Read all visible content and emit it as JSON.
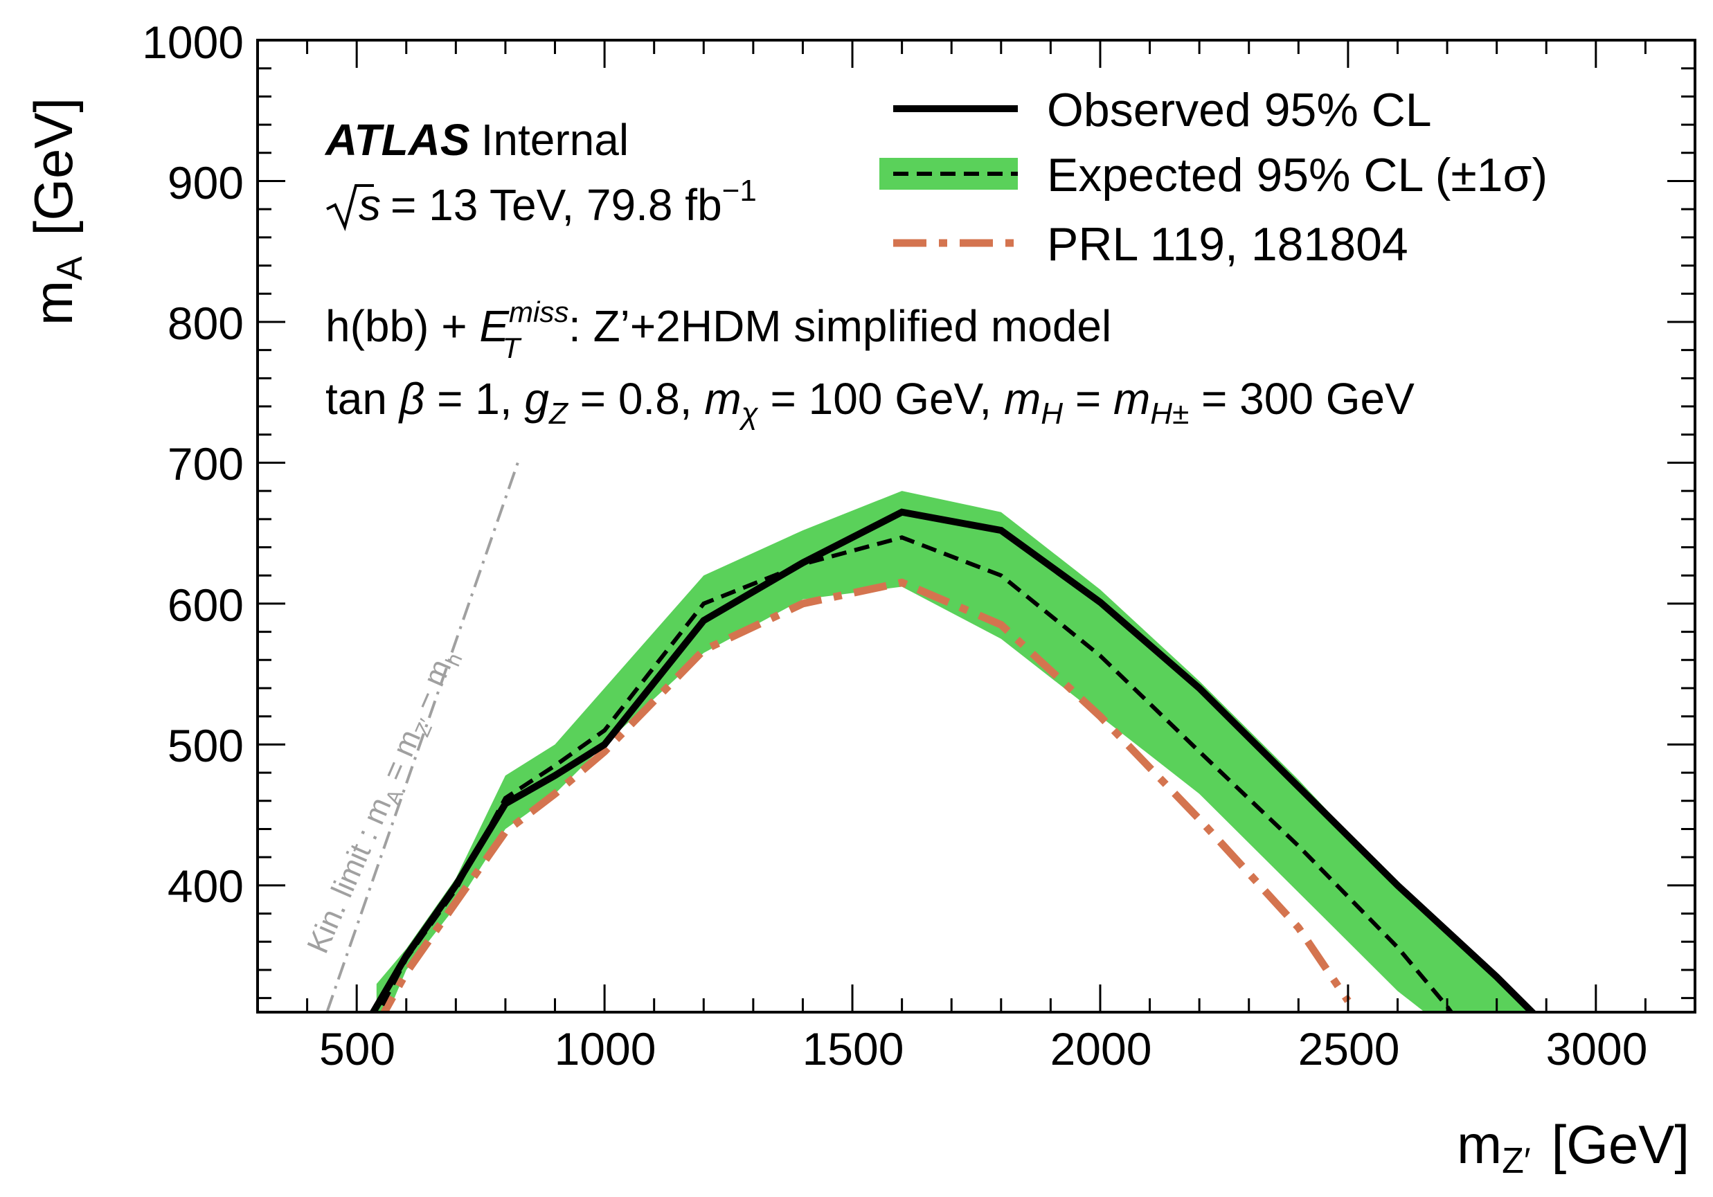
{
  "chart_data": {
    "type": "line",
    "xlabel": "m_Z′ [GeV]",
    "xlabel_parts": {
      "main": "m",
      "sub": "Z′",
      "unit": "[GeV]"
    },
    "ylabel": "m_A [GeV]",
    "ylabel_parts": {
      "main": "m",
      "sub": "A",
      "unit": "[GeV]"
    },
    "xlim": [
      300,
      3200
    ],
    "ylim": [
      310,
      1000
    ],
    "xticks": [
      500,
      1000,
      1500,
      2000,
      2500,
      3000
    ],
    "xtick_labels": [
      "500",
      "1000",
      "1500",
      "2000",
      "2500",
      "3000"
    ],
    "yticks": [
      400,
      500,
      600,
      700,
      800,
      900,
      1000
    ],
    "ytick_labels": [
      "400",
      "500",
      "600",
      "700",
      "800",
      "900",
      "1000"
    ],
    "grid": false,
    "legend_position": "top-right",
    "annotations": {
      "atlas_bold": "ATLAS",
      "atlas_rest": "Internal",
      "energy_sqrt": "√",
      "energy_s": "s",
      "energy_rest": "= 13 TeV, 79.8 fb",
      "energy_exp": "−1",
      "model_line": "h(bb) + E_T^miss: Z’+2HDM simplified model",
      "model_parts": {
        "pre": "h(bb) + ",
        "e": "E",
        "sub": "T",
        "sup": "miss",
        "post": ": Z’+2HDM simplified model"
      },
      "params_line": "tan β = 1, g_Z = 0.8, m_χ = 100 GeV, m_H = m_H± = 300 GeV",
      "params_parts": {
        "p1": "tan ",
        "beta": "β",
        "p2": " = 1, ",
        "g": "g",
        "gsub": "Z",
        "p3": " = 0.8, ",
        "m1": "m",
        "chi": "χ",
        "p4": " = 100 GeV, ",
        "m2": "m",
        "h1": "H",
        "p5": " = ",
        "m3": "m",
        "h2": "H±",
        "p6": " = 300 GeV"
      },
      "kin_limit": "Kin. limit : m_A = m_Z′ − m_h",
      "kin_parts": {
        "a": "Kin. limit : m",
        "asub": "A",
        "b": " = m",
        "bsub": "Z′",
        "c": " − m",
        "csub": "h"
      }
    },
    "series": [
      {
        "name": "Observed 95% CL",
        "style": "solid",
        "color": "#000000",
        "x": [
          500,
          600,
          700,
          800,
          900,
          1000,
          1200,
          1400,
          1600,
          1800,
          2000,
          2200,
          2400,
          2600,
          2800,
          2900
        ],
        "y": [
          290,
          350,
          400,
          458,
          478,
          500,
          588,
          629,
          665,
          652,
          601,
          540,
          470,
          400,
          335,
          300
        ]
      },
      {
        "name": "Expected 95% CL (±1σ)",
        "style": "dashed",
        "color": "#000000",
        "x": [
          530,
          600,
          700,
          800,
          900,
          1000,
          1200,
          1400,
          1600,
          1800,
          2000,
          2200,
          2400,
          2600,
          2700,
          2750
        ],
        "y": [
          300,
          348,
          397,
          462,
          485,
          510,
          600,
          628,
          647,
          620,
          563,
          495,
          428,
          356,
          314,
          290
        ]
      },
      {
        "name": "Expected ±1σ band",
        "style": "band",
        "color": "#5ad15a",
        "x": [
          540,
          600,
          700,
          800,
          900,
          1000,
          1200,
          1400,
          1600,
          1800,
          2000,
          2200,
          2400,
          2600,
          2800,
          2900
        ],
        "upper": [
          330,
          355,
          405,
          478,
          500,
          540,
          620,
          652,
          680,
          665,
          610,
          545,
          475,
          400,
          335,
          300
        ],
        "lower": [
          290,
          340,
          385,
          440,
          465,
          500,
          565,
          603,
          612,
          575,
          520,
          465,
          395,
          325,
          270,
          250
        ]
      },
      {
        "name": "PRL 119, 181804",
        "style": "dashdot",
        "color": "#d4744f",
        "x": [
          540,
          600,
          700,
          800,
          900,
          1000,
          1200,
          1400,
          1600,
          1800,
          2000,
          2200,
          2400,
          2500
        ],
        "y": [
          300,
          338,
          388,
          438,
          465,
          495,
          567,
          600,
          615,
          585,
          520,
          447,
          370,
          318
        ]
      },
      {
        "name": "Kin. limit",
        "style": "dashdotgrey",
        "color": "#a0a0a0",
        "x": [
          440,
          825
        ],
        "y": [
          310,
          700
        ]
      }
    ]
  }
}
